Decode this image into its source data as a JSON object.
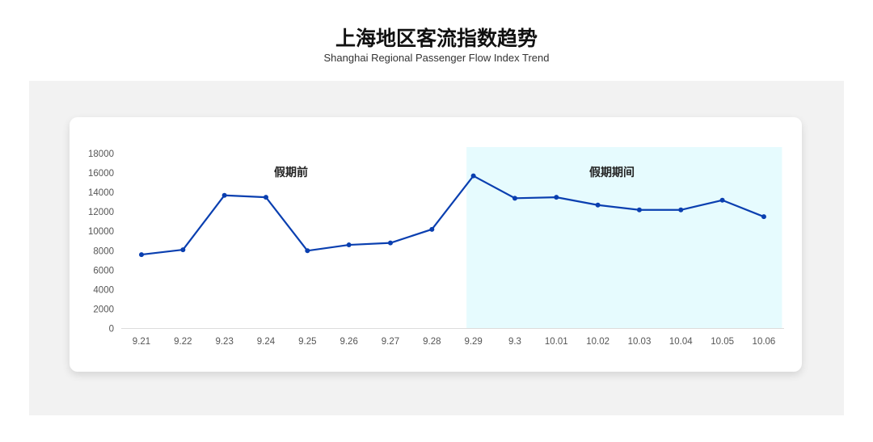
{
  "header": {
    "title": "上海地区客流指数趋势",
    "subtitle": "Shanghai Regional Passenger Flow Index Trend"
  },
  "chart_data": {
    "type": "line",
    "title": "上海地区客流指数趋势",
    "subtitle": "Shanghai Regional Passenger Flow Index Trend",
    "categories": [
      "9.21",
      "9.22",
      "9.23",
      "9.24",
      "9.25",
      "9.26",
      "9.27",
      "9.28",
      "9.29",
      "9.3",
      "10.01",
      "10.02",
      "10.03",
      "10.04",
      "10.05",
      "10.06"
    ],
    "values": [
      7600,
      8100,
      13700,
      13500,
      8000,
      8600,
      8800,
      10200,
      15700,
      13400,
      13500,
      12700,
      12200,
      12200,
      13200,
      11500
    ],
    "ylim": [
      0,
      18000
    ],
    "yticks": [
      0,
      2000,
      4000,
      6000,
      8000,
      10000,
      12000,
      14000,
      16000,
      18000
    ],
    "grid": false,
    "legend": "none",
    "annotations": [
      {
        "label": "假期前",
        "range": [
          "9.21",
          "9.28"
        ],
        "highlighted": false
      },
      {
        "label": "假期期间",
        "range": [
          "9.29",
          "10.06"
        ],
        "highlighted": true
      }
    ],
    "colors": {
      "line": "#0a3fb0",
      "highlight_band": "#e6fbfe",
      "axis_text": "#555555"
    }
  }
}
